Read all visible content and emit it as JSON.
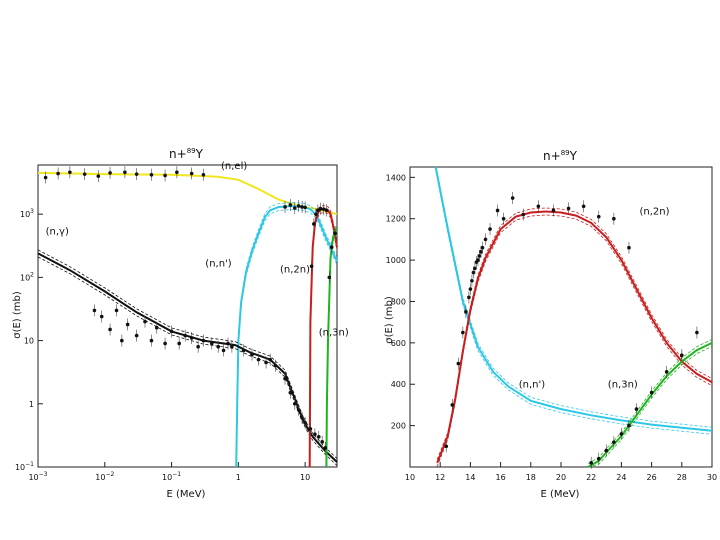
{
  "chart_data": [
    {
      "type": "line",
      "title": "n+89Y",
      "title_base": "n+",
      "title_super": "89",
      "title_tail": "Y",
      "xlabel": "E (MeV)",
      "ylabel": "σ(E) (mb)",
      "xscale": "log",
      "yscale": "log",
      "xlim": [
        0.001,
        30
      ],
      "ylim": [
        0.1,
        6000
      ],
      "xticks": [
        {
          "v": 0.001,
          "m": "10",
          "e": "−3"
        },
        {
          "v": 0.01,
          "m": "10",
          "e": "−2"
        },
        {
          "v": 0.1,
          "m": "10",
          "e": "−1"
        },
        {
          "v": 1,
          "m": "1",
          "e": ""
        },
        {
          "v": 10,
          "m": "10",
          "e": ""
        }
      ],
      "yticks": [
        {
          "v": 0.1,
          "m": "10",
          "e": "−1"
        },
        {
          "v": 1,
          "m": "1",
          "e": ""
        },
        {
          "v": 10,
          "m": "10",
          "e": ""
        },
        {
          "v": 100,
          "m": "10",
          "e": "2"
        },
        {
          "v": 1000,
          "m": "10",
          "e": "3"
        }
      ],
      "series": [
        {
          "name": "(n,el)",
          "color": "#f0e61e",
          "x": [
            0.001,
            0.01,
            0.1,
            0.5,
            1,
            2,
            4,
            8,
            15,
            30
          ],
          "y": [
            4500,
            4300,
            4200,
            3900,
            3500,
            2500,
            1700,
            1350,
            1200,
            1000
          ]
        },
        {
          "name": "(n,n')",
          "color": "#2ec7e6",
          "x": [
            0.93,
            0.96,
            1.0,
            1.1,
            1.3,
            1.6,
            2,
            2.5,
            3,
            4,
            6,
            9,
            12,
            15,
            20,
            30
          ],
          "y": [
            0.1,
            1,
            10,
            40,
            120,
            260,
            500,
            900,
            1150,
            1300,
            1340,
            1320,
            1200,
            950,
            450,
            180
          ]
        },
        {
          "name": "(n,γ)",
          "color": "#111111",
          "x": [
            0.001,
            0.003,
            0.01,
            0.03,
            0.1,
            0.3,
            0.9,
            1.5,
            3,
            5,
            7,
            9,
            11,
            13,
            20,
            30
          ],
          "y": [
            240,
            130,
            60,
            28,
            14,
            10,
            8.5,
            6.5,
            5,
            3,
            1.2,
            0.6,
            0.4,
            0.3,
            0.18,
            0.12
          ]
        },
        {
          "name": "(n,2n)",
          "color": "#c81e1e",
          "x": [
            11.7,
            12,
            13,
            14,
            15,
            16,
            17,
            18,
            19,
            20,
            22,
            24,
            26,
            28,
            30
          ],
          "y": [
            0.1,
            20,
            300,
            700,
            950,
            1100,
            1170,
            1190,
            1200,
            1200,
            1150,
            1000,
            700,
            450,
            300
          ]
        },
        {
          "name": "(n,3n)",
          "color": "#1eb41e",
          "x": [
            20.8,
            21.2,
            22,
            24,
            26,
            28,
            30
          ],
          "y": [
            0.1,
            1,
            10,
            200,
            400,
            550,
            600
          ]
        }
      ],
      "measurements": {
        "(n,el)": {
          "x": [
            0.0013,
            0.002,
            0.003,
            0.005,
            0.008,
            0.012,
            0.02,
            0.03,
            0.05,
            0.08,
            0.12,
            0.2,
            0.3
          ],
          "y": [
            3800,
            4400,
            4600,
            4300,
            4000,
            4500,
            4600,
            4300,
            4200,
            4100,
            4600,
            4400,
            4200
          ]
        },
        "(n,γ)": {
          "x": [
            0.007,
            0.009,
            0.012,
            0.015,
            0.018,
            0.022,
            0.03,
            0.04,
            0.05,
            0.06,
            0.08,
            0.1,
            0.13,
            0.16,
            0.2,
            0.25,
            0.3,
            0.4,
            0.5,
            0.6,
            0.7,
            0.8,
            1.2,
            1.6,
            2,
            2.6,
            3,
            3.6,
            5,
            6,
            7,
            8,
            9,
            10,
            12,
            14,
            16,
            18,
            20
          ],
          "y": [
            30,
            24,
            15,
            30,
            10,
            18,
            12,
            20,
            10,
            16,
            9,
            14,
            9,
            12,
            11,
            8,
            10,
            9,
            8,
            7,
            9,
            8,
            7,
            6,
            5,
            4.5,
            5,
            4,
            2.5,
            1.5,
            1,
            0.8,
            0.6,
            0.5,
            0.4,
            0.33,
            0.3,
            0.25,
            0.2
          ]
        },
        "(n,n')": {
          "x": [
            5,
            6,
            7,
            8,
            9,
            10
          ],
          "y": [
            1300,
            1400,
            1250,
            1350,
            1300,
            1280
          ]
        },
        "(n,2n)": {
          "x": [
            12.5,
            13.5,
            14.5,
            15.5,
            17,
            19,
            21
          ],
          "y": [
            150,
            700,
            1000,
            1150,
            1220,
            1200,
            1150
          ]
        },
        "(n,3n)": {
          "x": [
            23,
            25,
            28
          ],
          "y": [
            100,
            300,
            500
          ]
        }
      },
      "annotations": [
        "(n,el)",
        "(n,γ)",
        "(n,n')",
        "(n,2n)",
        "(n,3n)"
      ],
      "annotation_values": [
        {
          "label": "(n,el)",
          "x": 0.55,
          "y": 5200
        },
        {
          "label": "(n,γ)",
          "x": 0.0013,
          "y": 480
        },
        {
          "label": "(n,n')",
          "x": 0.32,
          "y": 150
        },
        {
          "label": "(n,2n)",
          "x": 4.2,
          "y": 120
        },
        {
          "label": "(n,3n)",
          "x": 16,
          "y": 12
        }
      ]
    },
    {
      "type": "line",
      "title": "n+89Y",
      "title_base": "n+",
      "title_super": "89",
      "title_tail": "Y",
      "xlabel": "E (MeV)",
      "ylabel": "σ(E) (mb)",
      "xlim": [
        10,
        30
      ],
      "ylim": [
        0,
        1450
      ],
      "xticks": [
        10,
        12,
        14,
        16,
        18,
        20,
        22,
        24,
        26,
        28,
        30
      ],
      "yticks": [
        200,
        400,
        600,
        800,
        1000,
        1200,
        1400
      ],
      "series": [
        {
          "name": "(n,n')",
          "color": "#2ec7e6",
          "x": [
            11.7,
            12.5,
            13.5,
            14.5,
            15.5,
            16.5,
            18,
            20,
            22,
            24,
            26,
            28,
            30
          ],
          "y": [
            1450,
            1150,
            800,
            580,
            460,
            390,
            320,
            280,
            250,
            225,
            205,
            190,
            175
          ]
        },
        {
          "name": "(n,2n)",
          "color": "#c81e1e",
          "x": [
            11.8,
            12.5,
            13,
            13.5,
            14,
            14.5,
            15,
            16,
            17,
            18,
            19,
            20,
            21,
            22,
            23,
            24,
            25,
            26,
            27,
            28,
            29,
            30
          ],
          "y": [
            20,
            150,
            330,
            560,
            760,
            910,
            1010,
            1150,
            1210,
            1230,
            1235,
            1230,
            1215,
            1180,
            1110,
            1000,
            860,
            720,
            600,
            510,
            450,
            410
          ]
        },
        {
          "name": "(n,3n)",
          "color": "#1eb41e",
          "x": [
            21.8,
            22.5,
            23,
            24,
            25,
            26,
            27,
            28,
            29,
            30
          ],
          "y": [
            0,
            30,
            70,
            150,
            250,
            350,
            440,
            510,
            565,
            600
          ]
        }
      ],
      "measurements": {
        "(n,2n)": {
          "x": [
            12.4,
            12.8,
            13.2,
            13.5,
            13.7,
            13.9,
            14.0,
            14.1,
            14.2,
            14.3,
            14.4,
            14.5,
            14.6,
            14.7,
            14.8,
            15.0,
            15.3,
            15.8,
            16.2,
            16.8,
            17.5,
            18.5,
            19.5,
            20.5,
            21.5,
            22.5,
            23.5,
            24.5,
            28.0
          ],
          "y": [
            100,
            300,
            500,
            650,
            750,
            820,
            860,
            900,
            940,
            960,
            990,
            1000,
            1020,
            1040,
            1060,
            1100,
            1150,
            1240,
            1200,
            1300,
            1220,
            1260,
            1240,
            1250,
            1260,
            1210,
            1200,
            1060,
            540
          ]
        },
        "(n,3n)": {
          "x": [
            22.0,
            22.5,
            23.0,
            23.5,
            24.0,
            24.5,
            25.0,
            26.0,
            27.0,
            28.0,
            29.0
          ],
          "y": [
            20,
            40,
            80,
            120,
            160,
            200,
            280,
            360,
            460,
            540,
            650
          ]
        }
      },
      "annotations": [
        "(n,2n)",
        "(n,n')",
        "(n,3n)"
      ],
      "annotation_values": [
        {
          "label": "(n,2n)",
          "x": 25.2,
          "y": 1220
        },
        {
          "label": "(n,n')",
          "x": 17.2,
          "y": 385
        },
        {
          "label": "(n,3n)",
          "x": 23.1,
          "y": 385
        }
      ]
    }
  ]
}
